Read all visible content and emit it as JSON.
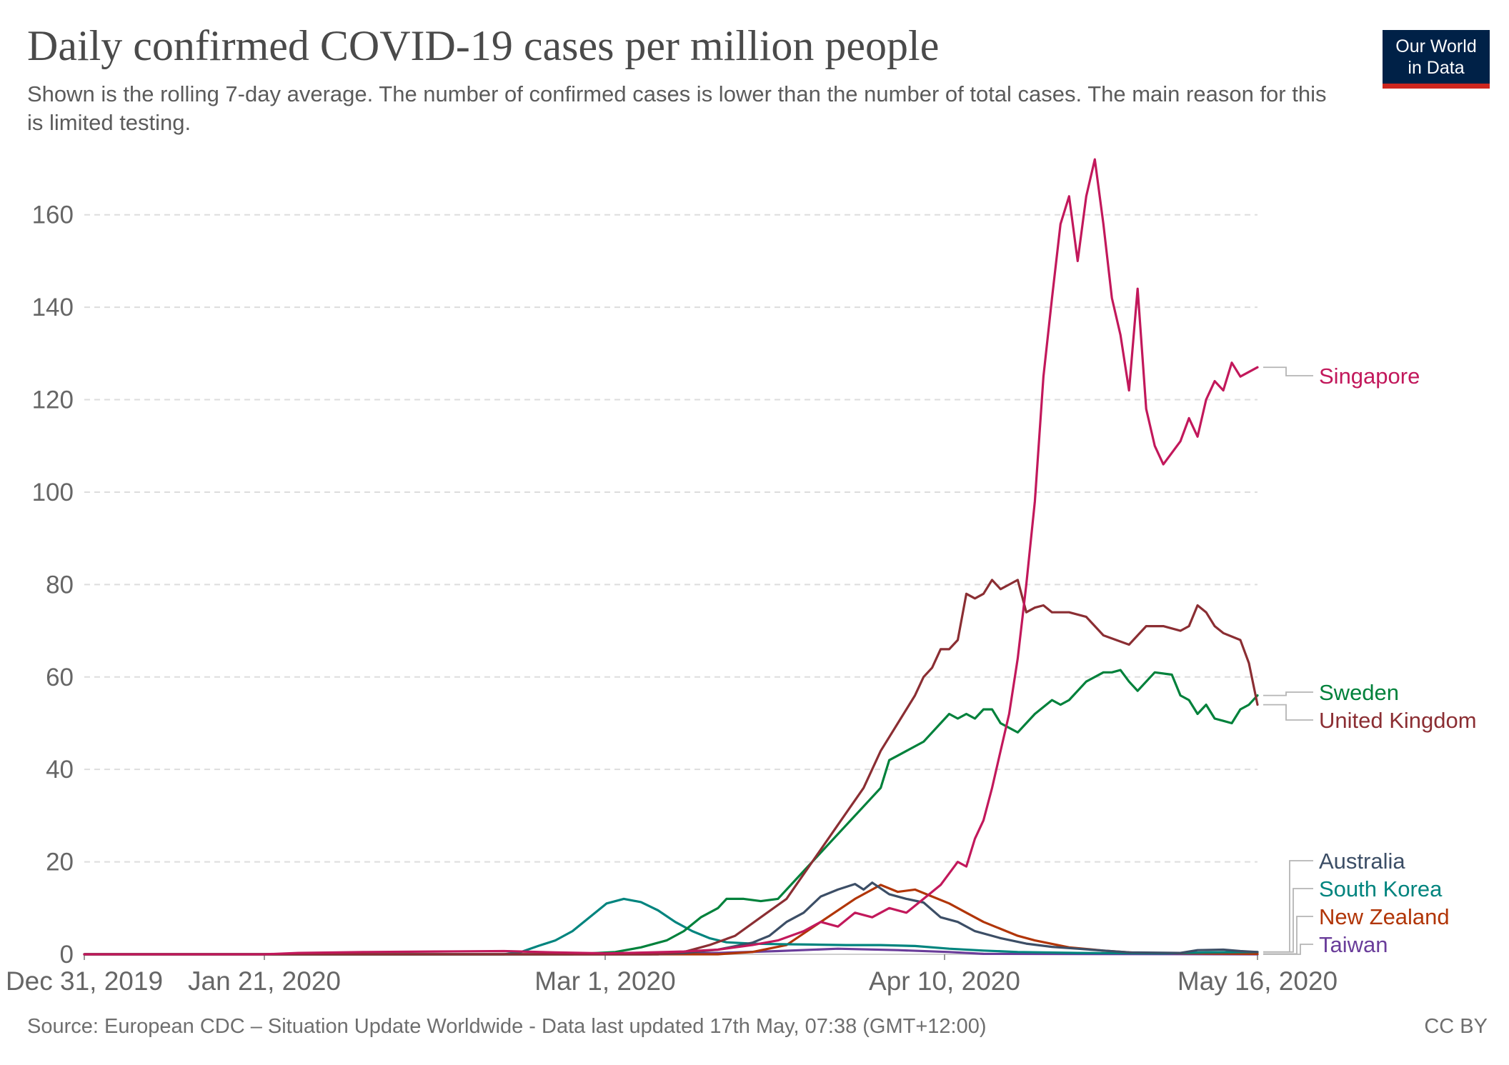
{
  "chart_data": {
    "type": "line",
    "title": "Daily confirmed COVID-19 cases per million people",
    "subtitle": "Shown is the rolling 7-day average. The number of confirmed cases is lower than the number of total cases. The main reason for this is limited testing.",
    "x_start": "2019-12-31",
    "x_end": "2020-05-16",
    "x_ticks": [
      "Dec 31, 2019",
      "Jan 21, 2020",
      "Mar 1, 2020",
      "Apr 10, 2020",
      "May 16, 2020"
    ],
    "y_ticks": [
      "0",
      "20",
      "40",
      "60",
      "80",
      "100",
      "120",
      "140",
      "160"
    ],
    "ylim": [
      0,
      170
    ],
    "grid": "horizontal dashed",
    "legend": "line end labels on the right",
    "series": [
      {
        "name": "Taiwan",
        "color": "#6a3d9a",
        "points": [
          [
            "2019-12-31",
            0
          ],
          [
            "2020-03-06",
            0
          ],
          [
            "2020-03-14",
            0.3
          ],
          [
            "2020-03-21",
            0.7
          ],
          [
            "2020-03-28",
            1.2
          ],
          [
            "2020-04-04",
            0.9
          ],
          [
            "2020-04-10",
            0.5
          ],
          [
            "2020-04-14",
            0.1
          ],
          [
            "2020-05-16",
            0
          ]
        ]
      },
      {
        "name": "New Zealand",
        "color": "#b13507",
        "points": [
          [
            "2019-12-31",
            0
          ],
          [
            "2020-03-14",
            0
          ],
          [
            "2020-03-18",
            0.5
          ],
          [
            "2020-03-22",
            2
          ],
          [
            "2020-03-26",
            7
          ],
          [
            "2020-03-30",
            12
          ],
          [
            "2020-04-02",
            15
          ],
          [
            "2020-04-04",
            13.5
          ],
          [
            "2020-04-06",
            14
          ],
          [
            "2020-04-08",
            12.5
          ],
          [
            "2020-04-10",
            11
          ],
          [
            "2020-04-12",
            9
          ],
          [
            "2020-04-14",
            7
          ],
          [
            "2020-04-16",
            5.5
          ],
          [
            "2020-04-18",
            4
          ],
          [
            "2020-04-20",
            3
          ],
          [
            "2020-04-24",
            1.5
          ],
          [
            "2020-04-28",
            0.8
          ],
          [
            "2020-05-02",
            0.3
          ],
          [
            "2020-05-16",
            0.1
          ]
        ]
      },
      {
        "name": "South Korea",
        "color": "#00847e",
        "points": [
          [
            "2019-12-31",
            0
          ],
          [
            "2020-02-18",
            0
          ],
          [
            "2020-02-20",
            0.5
          ],
          [
            "2020-02-22",
            1.8
          ],
          [
            "2020-02-24",
            3
          ],
          [
            "2020-02-26",
            5
          ],
          [
            "2020-02-28",
            8
          ],
          [
            "2020-03-01",
            11
          ],
          [
            "2020-03-03",
            12
          ],
          [
            "2020-03-05",
            11.3
          ],
          [
            "2020-03-07",
            9.5
          ],
          [
            "2020-03-09",
            7
          ],
          [
            "2020-03-11",
            5
          ],
          [
            "2020-03-13",
            3.5
          ],
          [
            "2020-03-15",
            2.6
          ],
          [
            "2020-03-18",
            2.3
          ],
          [
            "2020-03-21",
            2.2
          ],
          [
            "2020-03-25",
            2.1
          ],
          [
            "2020-03-29",
            2
          ],
          [
            "2020-04-02",
            2
          ],
          [
            "2020-04-06",
            1.8
          ],
          [
            "2020-04-10",
            1.2
          ],
          [
            "2020-04-14",
            0.8
          ],
          [
            "2020-04-18",
            0.5
          ],
          [
            "2020-04-25",
            0.3
          ],
          [
            "2020-05-05",
            0.2
          ],
          [
            "2020-05-10",
            0.4
          ],
          [
            "2020-05-16",
            0.5
          ]
        ]
      },
      {
        "name": "Australia",
        "color": "#3c4e66",
        "points": [
          [
            "2019-12-31",
            0
          ],
          [
            "2020-03-07",
            0
          ],
          [
            "2020-03-10",
            0.3
          ],
          [
            "2020-03-14",
            1
          ],
          [
            "2020-03-18",
            2.5
          ],
          [
            "2020-03-20",
            4
          ],
          [
            "2020-03-22",
            7
          ],
          [
            "2020-03-24",
            9
          ],
          [
            "2020-03-26",
            12.5
          ],
          [
            "2020-03-28",
            14
          ],
          [
            "2020-03-30",
            15.2
          ],
          [
            "2020-03-31",
            14
          ],
          [
            "2020-04-01",
            15.5
          ],
          [
            "2020-04-03",
            13
          ],
          [
            "2020-04-05",
            12
          ],
          [
            "2020-04-07",
            11.2
          ],
          [
            "2020-04-09",
            8
          ],
          [
            "2020-04-11",
            7
          ],
          [
            "2020-04-13",
            5
          ],
          [
            "2020-04-16",
            3.5
          ],
          [
            "2020-04-19",
            2.3
          ],
          [
            "2020-04-22",
            1.6
          ],
          [
            "2020-04-25",
            1.2
          ],
          [
            "2020-04-28",
            0.8
          ],
          [
            "2020-05-01",
            0.4
          ],
          [
            "2020-05-07",
            0.3
          ],
          [
            "2020-05-09",
            0.9
          ],
          [
            "2020-05-12",
            1
          ],
          [
            "2020-05-14",
            0.7
          ],
          [
            "2020-05-16",
            0.5
          ]
        ]
      },
      {
        "name": "Sweden",
        "color": "#00813b",
        "points": [
          [
            "2019-12-31",
            0
          ],
          [
            "2020-02-26",
            0
          ],
          [
            "2020-03-02",
            0.5
          ],
          [
            "2020-03-05",
            1.5
          ],
          [
            "2020-03-08",
            3
          ],
          [
            "2020-03-10",
            5
          ],
          [
            "2020-03-12",
            8
          ],
          [
            "2020-03-14",
            10
          ],
          [
            "2020-03-15",
            12
          ],
          [
            "2020-03-17",
            12
          ],
          [
            "2020-03-19",
            11.5
          ],
          [
            "2020-03-21",
            12
          ],
          [
            "2020-03-23",
            16
          ],
          [
            "2020-03-25",
            20
          ],
          [
            "2020-03-27",
            24
          ],
          [
            "2020-03-29",
            28
          ],
          [
            "2020-03-31",
            32
          ],
          [
            "2020-04-02",
            36
          ],
          [
            "2020-04-03",
            42
          ],
          [
            "2020-04-04",
            43
          ],
          [
            "2020-04-05",
            44
          ],
          [
            "2020-04-07",
            46
          ],
          [
            "2020-04-09",
            50
          ],
          [
            "2020-04-10",
            52
          ],
          [
            "2020-04-11",
            51
          ],
          [
            "2020-04-12",
            52
          ],
          [
            "2020-04-13",
            51
          ],
          [
            "2020-04-14",
            53
          ],
          [
            "2020-04-15",
            53
          ],
          [
            "2020-04-16",
            50
          ],
          [
            "2020-04-18",
            48
          ],
          [
            "2020-04-20",
            52
          ],
          [
            "2020-04-22",
            55
          ],
          [
            "2020-04-23",
            54
          ],
          [
            "2020-04-24",
            55
          ],
          [
            "2020-04-26",
            59
          ],
          [
            "2020-04-28",
            61
          ],
          [
            "2020-04-29",
            61
          ],
          [
            "2020-04-30",
            61.5
          ],
          [
            "2020-05-01",
            59
          ],
          [
            "2020-05-02",
            57
          ],
          [
            "2020-05-04",
            61
          ],
          [
            "2020-05-06",
            60.5
          ],
          [
            "2020-05-07",
            56
          ],
          [
            "2020-05-08",
            55
          ],
          [
            "2020-05-09",
            52
          ],
          [
            "2020-05-10",
            54
          ],
          [
            "2020-05-11",
            51
          ],
          [
            "2020-05-12",
            50.5
          ],
          [
            "2020-05-13",
            50
          ],
          [
            "2020-05-14",
            53
          ],
          [
            "2020-05-15",
            54
          ],
          [
            "2020-05-16",
            56
          ]
        ]
      },
      {
        "name": "United Kingdom",
        "color": "#8b2e33",
        "points": [
          [
            "2019-12-31",
            0
          ],
          [
            "2020-03-07",
            0
          ],
          [
            "2020-03-10",
            0.5
          ],
          [
            "2020-03-13",
            2
          ],
          [
            "2020-03-16",
            4
          ],
          [
            "2020-03-19",
            8
          ],
          [
            "2020-03-22",
            12
          ],
          [
            "2020-03-25",
            20
          ],
          [
            "2020-03-28",
            28
          ],
          [
            "2020-03-31",
            36
          ],
          [
            "2020-04-02",
            44
          ],
          [
            "2020-04-04",
            50
          ],
          [
            "2020-04-06",
            56
          ],
          [
            "2020-04-07",
            60
          ],
          [
            "2020-04-08",
            62
          ],
          [
            "2020-04-09",
            66
          ],
          [
            "2020-04-10",
            66
          ],
          [
            "2020-04-11",
            68
          ],
          [
            "2020-04-12",
            78
          ],
          [
            "2020-04-13",
            77
          ],
          [
            "2020-04-14",
            78
          ],
          [
            "2020-04-15",
            81
          ],
          [
            "2020-04-16",
            79
          ],
          [
            "2020-04-17",
            80
          ],
          [
            "2020-04-18",
            81
          ],
          [
            "2020-04-19",
            74
          ],
          [
            "2020-04-20",
            75
          ],
          [
            "2020-04-21",
            75.5
          ],
          [
            "2020-04-22",
            74
          ],
          [
            "2020-04-24",
            74
          ],
          [
            "2020-04-26",
            73
          ],
          [
            "2020-04-28",
            69
          ],
          [
            "2020-05-01",
            67
          ],
          [
            "2020-05-03",
            71
          ],
          [
            "2020-05-05",
            71
          ],
          [
            "2020-05-07",
            70
          ],
          [
            "2020-05-08",
            71
          ],
          [
            "2020-05-09",
            75.5
          ],
          [
            "2020-05-10",
            74
          ],
          [
            "2020-05-11",
            71
          ],
          [
            "2020-05-12",
            69.5
          ],
          [
            "2020-05-14",
            68
          ],
          [
            "2020-05-15",
            63
          ],
          [
            "2020-05-16",
            54
          ]
        ]
      },
      {
        "name": "Singapore",
        "color": "#c2185b",
        "points": [
          [
            "2019-12-31",
            0
          ],
          [
            "2020-01-21",
            0
          ],
          [
            "2020-01-25",
            0.3
          ],
          [
            "2020-02-02",
            0.5
          ],
          [
            "2020-02-10",
            0.6
          ],
          [
            "2020-02-18",
            0.7
          ],
          [
            "2020-02-24",
            0.4
          ],
          [
            "2020-03-01",
            0.2
          ],
          [
            "2020-03-06",
            0.4
          ],
          [
            "2020-03-10",
            0.6
          ],
          [
            "2020-03-14",
            1
          ],
          [
            "2020-03-18",
            2
          ],
          [
            "2020-03-21",
            3
          ],
          [
            "2020-03-24",
            5
          ],
          [
            "2020-03-26",
            7
          ],
          [
            "2020-03-28",
            6
          ],
          [
            "2020-03-30",
            9
          ],
          [
            "2020-04-01",
            8
          ],
          [
            "2020-04-03",
            10
          ],
          [
            "2020-04-05",
            9
          ],
          [
            "2020-04-07",
            12
          ],
          [
            "2020-04-09",
            15
          ],
          [
            "2020-04-11",
            20
          ],
          [
            "2020-04-12",
            19
          ],
          [
            "2020-04-13",
            25
          ],
          [
            "2020-04-14",
            29
          ],
          [
            "2020-04-15",
            36
          ],
          [
            "2020-04-16",
            44
          ],
          [
            "2020-04-17",
            52
          ],
          [
            "2020-04-18",
            64
          ],
          [
            "2020-04-19",
            80
          ],
          [
            "2020-04-20",
            98
          ],
          [
            "2020-04-21",
            125
          ],
          [
            "2020-04-22",
            142
          ],
          [
            "2020-04-23",
            158
          ],
          [
            "2020-04-24",
            164
          ],
          [
            "2020-04-25",
            150
          ],
          [
            "2020-04-26",
            164
          ],
          [
            "2020-04-27",
            172
          ],
          [
            "2020-04-28",
            158
          ],
          [
            "2020-04-29",
            142
          ],
          [
            "2020-04-30",
            134
          ],
          [
            "2020-05-01",
            122
          ],
          [
            "2020-05-02",
            144
          ],
          [
            "2020-05-03",
            118
          ],
          [
            "2020-05-04",
            110
          ],
          [
            "2020-05-05",
            106
          ],
          [
            "2020-05-07",
            111
          ],
          [
            "2020-05-08",
            116
          ],
          [
            "2020-05-09",
            112
          ],
          [
            "2020-05-10",
            120
          ],
          [
            "2020-05-11",
            124
          ],
          [
            "2020-05-12",
            122
          ],
          [
            "2020-05-13",
            128
          ],
          [
            "2020-05-14",
            125
          ],
          [
            "2020-05-15",
            126
          ],
          [
            "2020-05-16",
            127
          ]
        ]
      }
    ]
  },
  "labels": [
    {
      "name": "Singapore",
      "color": "#c2185b"
    },
    {
      "name": "Sweden",
      "color": "#00813b"
    },
    {
      "name": "United Kingdom",
      "color": "#8b2e33"
    },
    {
      "name": "Australia",
      "color": "#3c4e66"
    },
    {
      "name": "South Korea",
      "color": "#00847e"
    },
    {
      "name": "New Zealand",
      "color": "#b13507"
    },
    {
      "name": "Taiwan",
      "color": "#6a3d9a"
    }
  ],
  "logo": {
    "line1": "Our World",
    "line2": "in Data"
  },
  "footer": {
    "source": "Source: European CDC – Situation Update Worldwide - Data last updated 17th May, 07:38 (GMT+12:00)",
    "license": "CC BY"
  }
}
